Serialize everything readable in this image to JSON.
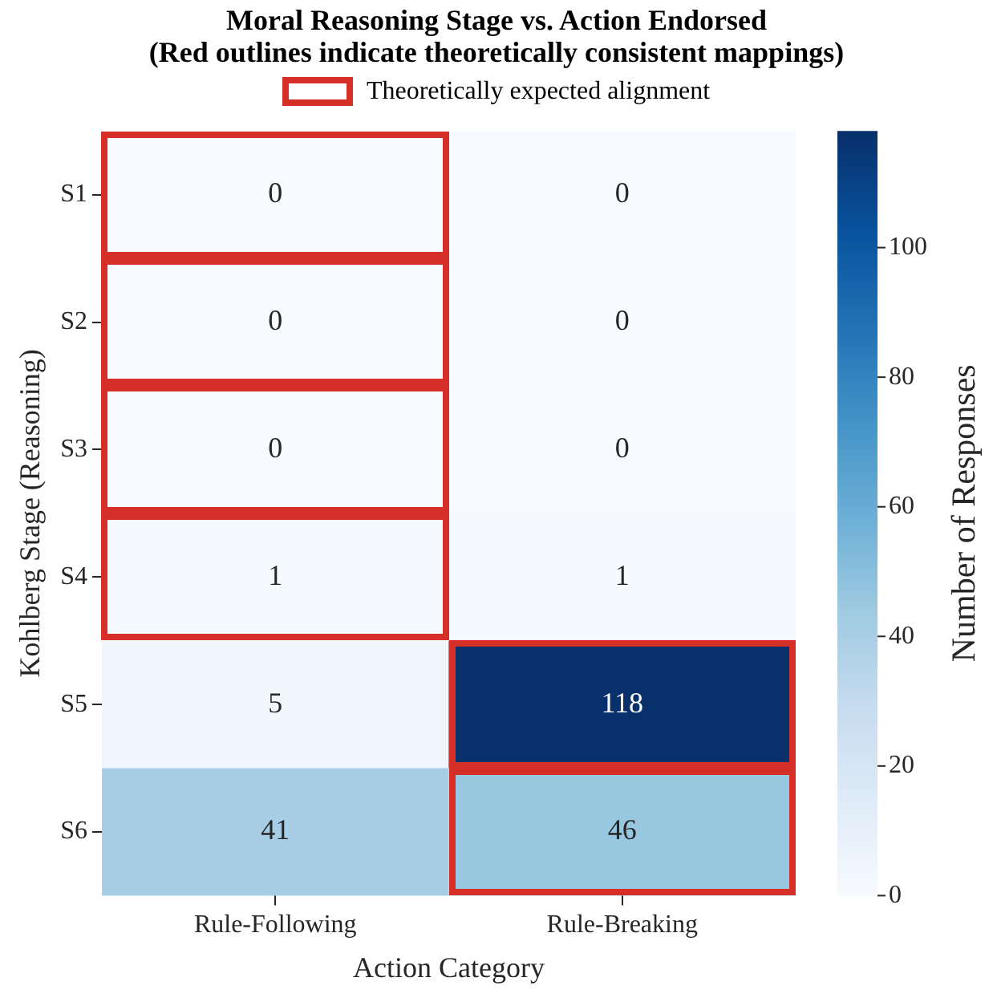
{
  "chart_data": {
    "type": "heatmap",
    "title": "Moral Reasoning Stage vs. Action Endorsed\n(Red outlines indicate theoretically consistent mappings)",
    "xlabel": "Action Category",
    "ylabel": "Kohlberg Stage (Reasoning)",
    "clabel": "Number of Responses",
    "categories": [
      "Rule-Following",
      "Rule-Breaking"
    ],
    "y_categories": [
      "S1",
      "S2",
      "S3",
      "S4",
      "S5",
      "S6"
    ],
    "cells": [
      [
        0,
        0
      ],
      [
        0,
        0
      ],
      [
        0,
        0
      ],
      [
        1,
        1
      ],
      [
        5,
        118
      ],
      [
        41,
        46
      ]
    ],
    "clim": [
      0,
      118
    ],
    "cticks": [
      0,
      20,
      40,
      60,
      80,
      100
    ],
    "data_labels": true,
    "annotations": [
      "Theoretically expected alignment"
    ]
  }
}
